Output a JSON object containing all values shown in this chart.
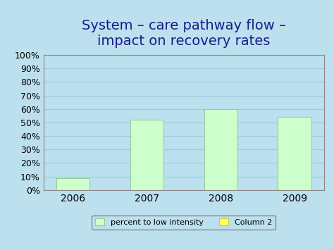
{
  "title_line1": "System – care pathway flow –",
  "title_line2": "impact on recovery rates",
  "categories": [
    "2006",
    "2007",
    "2008",
    "2009"
  ],
  "values": [
    9,
    52,
    60,
    54
  ],
  "bar_color": "#ccffcc",
  "bar_edgecolor": "#99cc99",
  "background_color": "#bce0ee",
  "plot_bg_color": "#bce0ee",
  "title_color": "#1a1a8c",
  "title_fontsize": 14,
  "tick_label_fontsize": 9,
  "xtick_fontsize": 10,
  "ylim": [
    0,
    100
  ],
  "ytick_values": [
    0,
    10,
    20,
    30,
    40,
    50,
    60,
    70,
    80,
    90,
    100
  ],
  "legend_labels": [
    "percent to low intensity",
    "Column 2"
  ],
  "legend_colors": [
    "#ccffcc",
    "#ffff66"
  ],
  "legend_edge_colors": [
    "#99cc99",
    "#cccc33"
  ],
  "grid_color": "#a0c8d8",
  "spine_color": "#888888"
}
